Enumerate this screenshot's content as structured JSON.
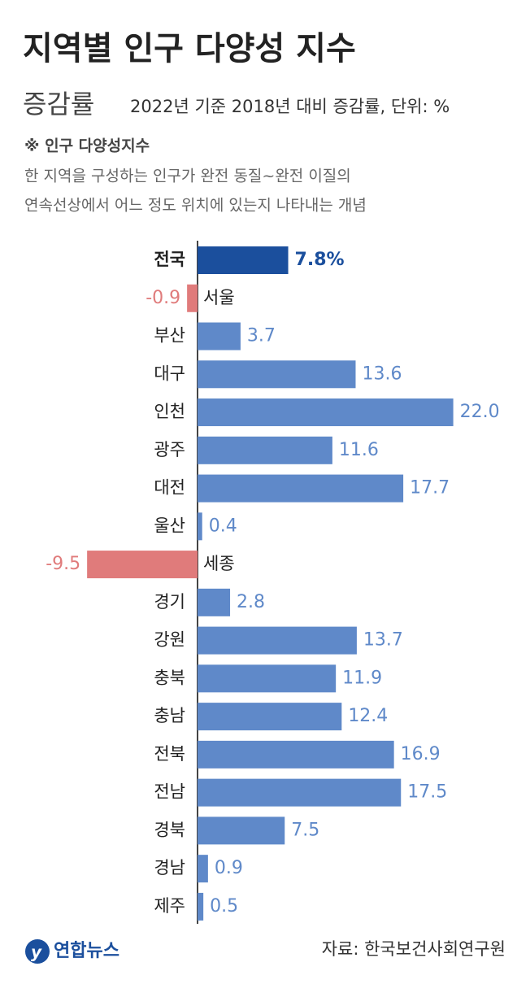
{
  "chart_data": {
    "type": "bar",
    "orientation": "horizontal",
    "title": "지역별 인구 다양성 지수",
    "subtitle": "증감률",
    "subtitle_note": "2022년 기준 2018년 대비 증감률, 단위: %",
    "note_title": "※ 인구 다양성지수",
    "note_lines": [
      "한 지역을 구성하는 인구가 완전 동질~완전 이질의",
      "연속선상에서 어느 정도 위치에 있는지 나타내는 개념"
    ],
    "categories": [
      "전국",
      "서울",
      "부산",
      "대구",
      "인천",
      "광주",
      "대전",
      "울산",
      "세종",
      "경기",
      "강원",
      "충북",
      "충남",
      "전북",
      "전남",
      "경북",
      "경남",
      "제주"
    ],
    "values": [
      7.8,
      -0.9,
      3.7,
      13.6,
      22.0,
      11.6,
      17.7,
      0.4,
      -9.5,
      2.8,
      13.7,
      11.9,
      12.4,
      16.9,
      17.5,
      7.5,
      0.9,
      0.5
    ],
    "value_labels": [
      "7.8%",
      "-0.9",
      "3.7",
      "13.6",
      "22.0",
      "11.6",
      "17.7",
      "0.4",
      "-9.5",
      "2.8",
      "13.7",
      "11.9",
      "12.4",
      "16.9",
      "17.5",
      "7.5",
      "0.9",
      "0.5"
    ],
    "colors": [
      "#1b4f9d",
      "#e07b7b",
      "#5f89c9",
      "#5f89c9",
      "#5f89c9",
      "#5f89c9",
      "#5f89c9",
      "#5f89c9",
      "#e07b7b",
      "#5f89c9",
      "#5f89c9",
      "#5f89c9",
      "#5f89c9",
      "#5f89c9",
      "#5f89c9",
      "#5f89c9",
      "#5f89c9",
      "#5f89c9"
    ],
    "highlight_index": 0,
    "source": "자료: 한국보건사회연구원",
    "logo": "연합뉴스"
  }
}
